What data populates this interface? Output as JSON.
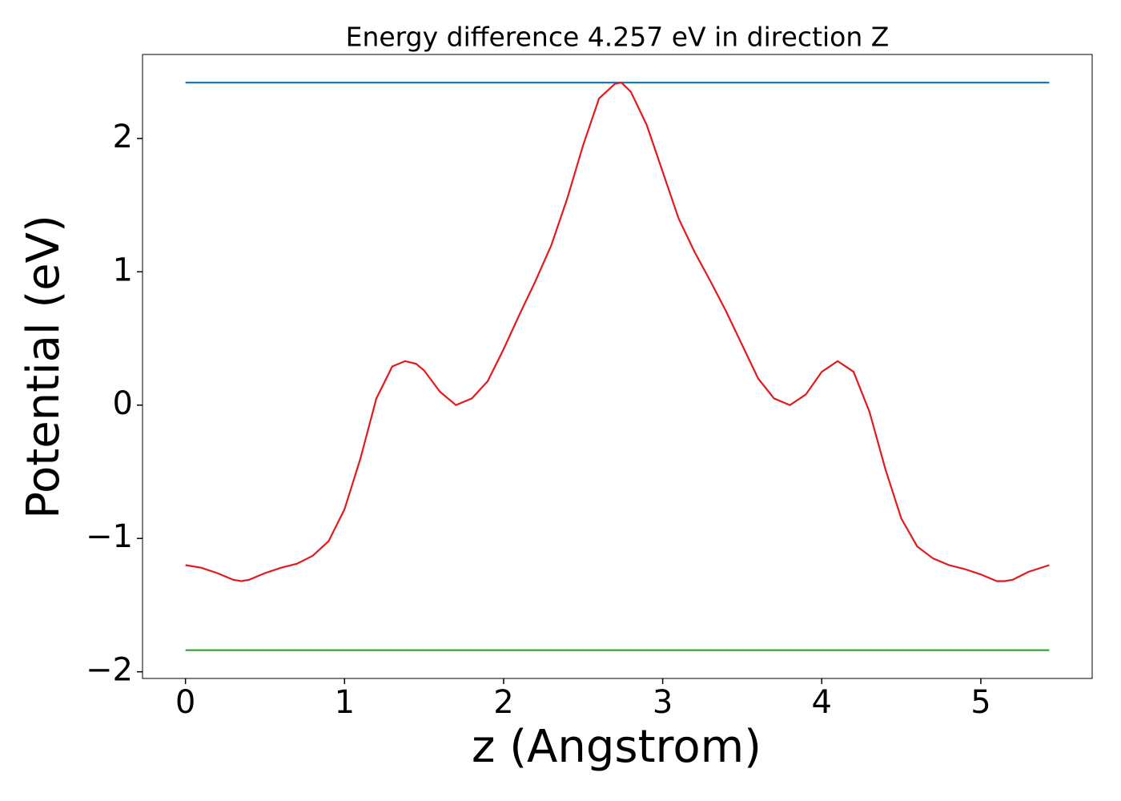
{
  "chart_data": {
    "type": "line",
    "title": "Energy difference 4.257 eV in direction Z",
    "xlabel": "z (Angstrom)",
    "ylabel": "Potential (eV)",
    "xlim": [
      -0.27,
      5.7
    ],
    "ylim": [
      -2.05,
      2.63
    ],
    "xticks": [
      0,
      1,
      2,
      3,
      4,
      5
    ],
    "yticks": [
      {
        "value": -2,
        "label": "−2"
      },
      {
        "value": -1,
        "label": "−1"
      },
      0,
      1,
      2
    ],
    "series": [
      {
        "color": "#1f77b4",
        "x": [
          0,
          5.43
        ],
        "values": [
          2.419,
          2.419
        ]
      },
      {
        "color": "#2ca02c",
        "x": [
          0,
          5.43
        ],
        "values": [
          -1.838,
          -1.838
        ]
      },
      {
        "color": "#e31a1c",
        "x": [
          0,
          0.1,
          0.2,
          0.3,
          0.35,
          0.4,
          0.5,
          0.6,
          0.7,
          0.8,
          0.9,
          1.0,
          1.1,
          1.2,
          1.3,
          1.38,
          1.45,
          1.5,
          1.6,
          1.7,
          1.8,
          1.9,
          2.0,
          2.1,
          2.2,
          2.3,
          2.4,
          2.5,
          2.6,
          2.7,
          2.74,
          2.8,
          2.9,
          3.0,
          3.1,
          3.2,
          3.3,
          3.4,
          3.5,
          3.6,
          3.7,
          3.8,
          3.9,
          4.0,
          4.1,
          4.2,
          4.3,
          4.4,
          4.5,
          4.6,
          4.7,
          4.8,
          4.9,
          5.0,
          5.1,
          5.15,
          5.2,
          5.3,
          5.43
        ],
        "values": [
          -1.2,
          -1.22,
          -1.26,
          -1.31,
          -1.32,
          -1.31,
          -1.26,
          -1.22,
          -1.19,
          -1.13,
          -1.02,
          -0.78,
          -0.4,
          0.05,
          0.29,
          0.33,
          0.31,
          0.26,
          0.1,
          0.0,
          0.05,
          0.18,
          0.42,
          0.68,
          0.93,
          1.2,
          1.55,
          1.95,
          2.3,
          2.41,
          2.42,
          2.35,
          2.1,
          1.75,
          1.4,
          1.15,
          0.93,
          0.7,
          0.45,
          0.2,
          0.05,
          0.0,
          0.08,
          0.25,
          0.33,
          0.25,
          -0.05,
          -0.48,
          -0.85,
          -1.06,
          -1.15,
          -1.2,
          -1.23,
          -1.27,
          -1.32,
          -1.32,
          -1.31,
          -1.25,
          -1.2
        ]
      }
    ]
  }
}
